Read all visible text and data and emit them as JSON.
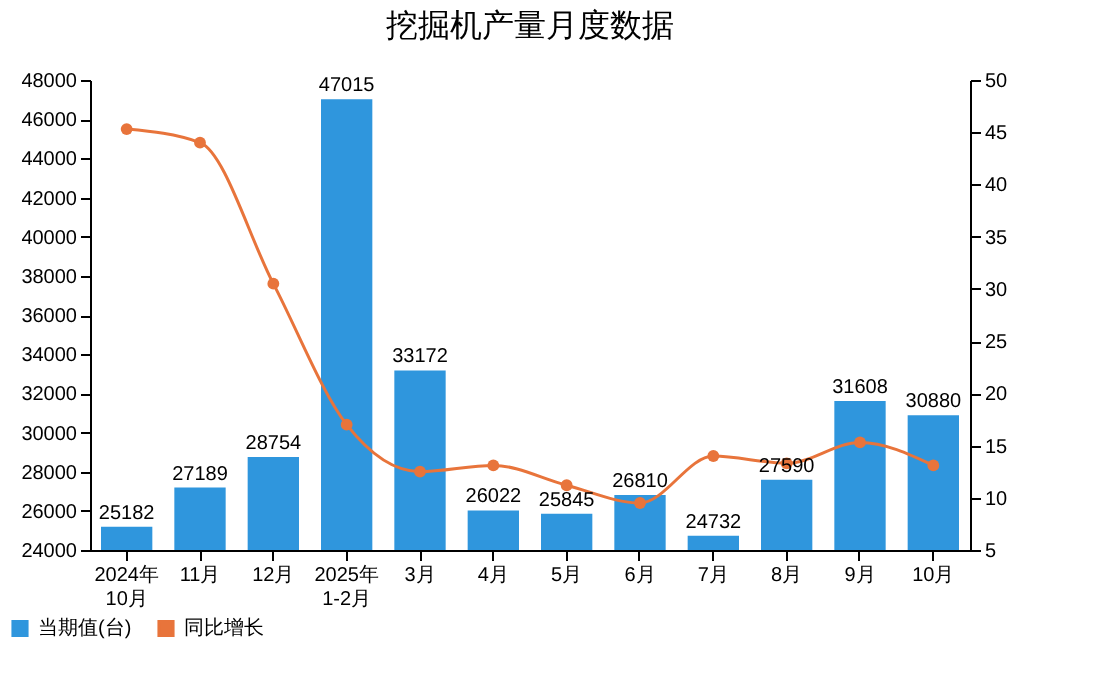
{
  "chart_data": {
    "type": "bar",
    "title": "挖掘机产量月度数据",
    "categories": [
      "2024年\n10月",
      "11月",
      "12月",
      "2025年\n1-2月",
      "3月",
      "4月",
      "5月",
      "6月",
      "7月",
      "8月",
      "9月",
      "10月"
    ],
    "series": [
      {
        "name": "当期值(台)",
        "color": "#2f96dd",
        "values": [
          25182,
          27189,
          28754,
          47015,
          33172,
          26022,
          25845,
          26810,
          24732,
          27590,
          31608,
          30880
        ],
        "value_labels": [
          "25182",
          "27189",
          "28754",
          "47015",
          "33172",
          "26022",
          "25845",
          "26810",
          "24732",
          "27590",
          "31608",
          "30880"
        ]
      },
      {
        "name": "同比增长",
        "type": "line",
        "axis": "y2",
        "color": "#e8743b",
        "values": [
          45.3,
          44.0,
          30.5,
          17.0,
          12.5,
          13.1,
          11.2,
          9.5,
          14.0,
          13.3,
          15.3,
          13.1
        ]
      }
    ],
    "ylim": [
      24000,
      48000
    ],
    "yticks": [
      24000,
      26000,
      28000,
      30000,
      32000,
      34000,
      36000,
      38000,
      40000,
      42000,
      44000,
      46000,
      48000
    ],
    "y2lim": [
      5,
      50
    ],
    "y2ticks": [
      5,
      10,
      15,
      20,
      25,
      30,
      35,
      40,
      45,
      50
    ],
    "marker": "circle",
    "legend": "bottom left",
    "grid": false
  }
}
